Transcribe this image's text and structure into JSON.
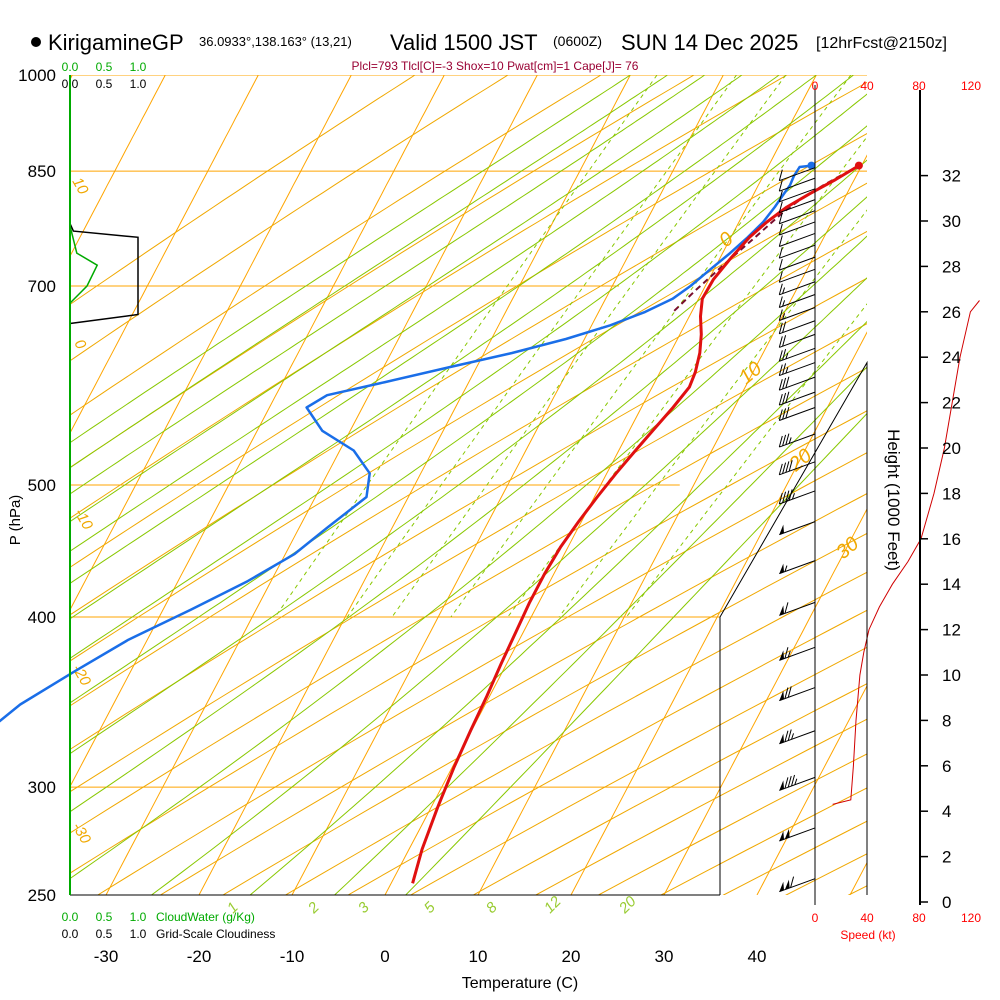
{
  "header": {
    "station": "KirigamineGP",
    "coords": "36.0933°,138.163° (13,21)",
    "valid_prefix": "Valid 1500 JST",
    "valid_utc": "(0600Z)",
    "valid_date": "SUN 14 Dec 2025",
    "forecast": "[12hrFcst@2150z]"
  },
  "stats_line": "Plcl=793 Tlcl[C]=-3 Shox=10 Pwat[cm]=1 Cape[J]= 76",
  "labels": {
    "y_axis": "P (hPa)",
    "x_axis": "Temperature (C)",
    "height_axis": "Height (1000 Feet)",
    "speed_axis": "Speed (kt)",
    "cloud_water": "CloudWater (g/Kg)",
    "cloudiness": "Grid-Scale Cloudiness"
  },
  "chart_data": {
    "type": "line",
    "title": "Skew-T log-P sounding",
    "xlabel": "Temperature (C)",
    "ylabel": "P (hPa)",
    "pressure_ticks": [
      250,
      300,
      400,
      500,
      700,
      850,
      1000
    ],
    "temp_ticks": [
      -30,
      -20,
      -10,
      0,
      10,
      20,
      30,
      40
    ],
    "height_ticks": [
      0,
      2,
      4,
      6,
      8,
      10,
      12,
      14,
      16,
      18,
      20,
      22,
      24,
      26,
      28,
      30,
      32
    ],
    "speed_ticks": [
      0,
      40,
      80,
      120
    ],
    "frac_ticks": [
      "0.0",
      "0.5",
      "1.0"
    ],
    "mixing_ratio_labels": [
      "1",
      "2",
      "3",
      "5",
      "8",
      "12",
      "20"
    ],
    "isotherm_labels_left": [
      "10",
      "0",
      "-10",
      "-20",
      "-30"
    ],
    "isotherm_labels_right": [
      "0",
      "10",
      "20",
      "30"
    ],
    "series": [
      {
        "name": "Temperature",
        "color": "#e01010",
        "points": [
          [
            9.7,
            858
          ],
          [
            8,
            838
          ],
          [
            6,
            818
          ],
          [
            4.3,
            800
          ],
          [
            3,
            780
          ],
          [
            2,
            760
          ],
          [
            1.2,
            735
          ],
          [
            0.5,
            708
          ],
          [
            0.4,
            685
          ],
          [
            1.2,
            665
          ],
          [
            2.3,
            645
          ],
          [
            3.2,
            625
          ],
          [
            3.8,
            605
          ],
          [
            4.0,
            590
          ],
          [
            3.4,
            570
          ],
          [
            2.6,
            550
          ],
          [
            1.8,
            530
          ],
          [
            1.0,
            510
          ],
          [
            0.3,
            490
          ],
          [
            -0.3,
            470
          ],
          [
            -0.8,
            450
          ],
          [
            -1.0,
            430
          ],
          [
            -1.0,
            410
          ],
          [
            -0.8,
            390
          ],
          [
            -0.6,
            370
          ],
          [
            -0.3,
            350
          ],
          [
            -0.1,
            330
          ],
          [
            0.2,
            310
          ],
          [
            0.7,
            290
          ],
          [
            1.4,
            270
          ],
          [
            2.3,
            255
          ]
        ]
      },
      {
        "name": "Dewpoint",
        "color": "#1a6ee8",
        "points": [
          [
            4.6,
            858
          ],
          [
            3.4,
            856
          ],
          [
            3.3,
            843
          ],
          [
            3.4,
            830
          ],
          [
            3.2,
            815
          ],
          [
            3.0,
            800
          ],
          [
            2.6,
            780
          ],
          [
            1.8,
            760
          ],
          [
            0.8,
            740
          ],
          [
            -0.4,
            720
          ],
          [
            -1.6,
            700
          ],
          [
            -2.8,
            685
          ],
          [
            -5.0,
            670
          ],
          [
            -8.0,
            655
          ],
          [
            -12.0,
            640
          ],
          [
            -17.0,
            625
          ],
          [
            -23.0,
            610
          ],
          [
            -29.0,
            595
          ],
          [
            -34.5,
            582
          ],
          [
            -36.0,
            570
          ],
          [
            -33.0,
            548
          ],
          [
            -28.5,
            530
          ],
          [
            -25.5,
            510
          ],
          [
            -24.5,
            490
          ],
          [
            -27.0,
            465
          ],
          [
            -29.0,
            445
          ],
          [
            -32.5,
            425
          ],
          [
            -37.0,
            405
          ],
          [
            -42.0,
            385
          ],
          [
            -46.0,
            365
          ],
          [
            -50.0,
            345
          ],
          [
            -52.0,
            330
          ],
          [
            -53.0,
            315
          ],
          [
            -52.5,
            300
          ],
          [
            -51.0,
            285
          ],
          [
            -49.5,
            270
          ],
          [
            -48.5,
            255
          ]
        ]
      },
      {
        "name": "Parcel",
        "color": "#7a0e2e",
        "points": [
          [
            9.7,
            858
          ],
          [
            7.0,
            830
          ],
          [
            5.2,
            808
          ],
          [
            4.2,
            793
          ],
          [
            2.6,
            760
          ],
          [
            1.0,
            730
          ],
          [
            -0.8,
            695
          ],
          [
            -2.0,
            670
          ]
        ]
      }
    ],
    "height_profile": {
      "name": "Wind speed vs height",
      "color": "#d00000",
      "unit": "kt",
      "values": [
        [
          4.3,
          12
        ],
        [
          4.5,
          26
        ],
        [
          6,
          28
        ],
        [
          8,
          30
        ],
        [
          10,
          33
        ],
        [
          11,
          36
        ],
        [
          12,
          40
        ],
        [
          13,
          48
        ],
        [
          14,
          58
        ],
        [
          15,
          70
        ],
        [
          16,
          80
        ],
        [
          18,
          90
        ],
        [
          20,
          98
        ],
        [
          22,
          104
        ],
        [
          24,
          110
        ],
        [
          26,
          118
        ],
        [
          26.5,
          125
        ]
      ]
    },
    "cloudiness_profile": {
      "name": "Grid-Scale Cloudiness",
      "values": [
        [
          657,
          0.0
        ],
        [
          667,
          1.0
        ],
        [
          760,
          1.0
        ],
        [
          768,
          0.05
        ],
        [
          778,
          0.0
        ]
      ]
    },
    "cloud_water_profile": {
      "name": "CloudWater (g/Kg)",
      "values": [
        [
          680,
          0.0
        ],
        [
          700,
          0.25
        ],
        [
          725,
          0.4
        ],
        [
          740,
          0.1
        ],
        [
          775,
          0.0
        ]
      ]
    },
    "wind_barbs": [
      {
        "p": 257,
        "kt": 110
      },
      {
        "p": 280,
        "kt": 100
      },
      {
        "p": 305,
        "kt": 85
      },
      {
        "p": 330,
        "kt": 75
      },
      {
        "p": 355,
        "kt": 70
      },
      {
        "p": 380,
        "kt": 65
      },
      {
        "p": 410,
        "kt": 60
      },
      {
        "p": 440,
        "kt": 55
      },
      {
        "p": 470,
        "kt": 50
      },
      {
        "p": 495,
        "kt": 45
      },
      {
        "p": 520,
        "kt": 40
      },
      {
        "p": 545,
        "kt": 35
      },
      {
        "p": 570,
        "kt": 30
      },
      {
        "p": 585,
        "kt": 30
      },
      {
        "p": 600,
        "kt": 30
      },
      {
        "p": 615,
        "kt": 25
      },
      {
        "p": 630,
        "kt": 25
      },
      {
        "p": 645,
        "kt": 20
      },
      {
        "p": 660,
        "kt": 20
      },
      {
        "p": 675,
        "kt": 15
      },
      {
        "p": 690,
        "kt": 15
      },
      {
        "p": 705,
        "kt": 15
      },
      {
        "p": 720,
        "kt": 10
      },
      {
        "p": 735,
        "kt": 10
      },
      {
        "p": 750,
        "kt": 10
      },
      {
        "p": 765,
        "kt": 10
      },
      {
        "p": 780,
        "kt": 10
      },
      {
        "p": 795,
        "kt": 10
      },
      {
        "p": 810,
        "kt": 10
      },
      {
        "p": 825,
        "kt": 10
      },
      {
        "p": 840,
        "kt": 10
      },
      {
        "p": 855,
        "kt": 10
      }
    ]
  },
  "colors": {
    "isobar": "#ffa500",
    "dry_adiabat": "#f0a800",
    "moist_adiabat": "#88c800",
    "mixing_ratio": "#88c800",
    "cloud_green": "#00aa00",
    "speed_red": "#ff0000",
    "stats": "#990033"
  }
}
